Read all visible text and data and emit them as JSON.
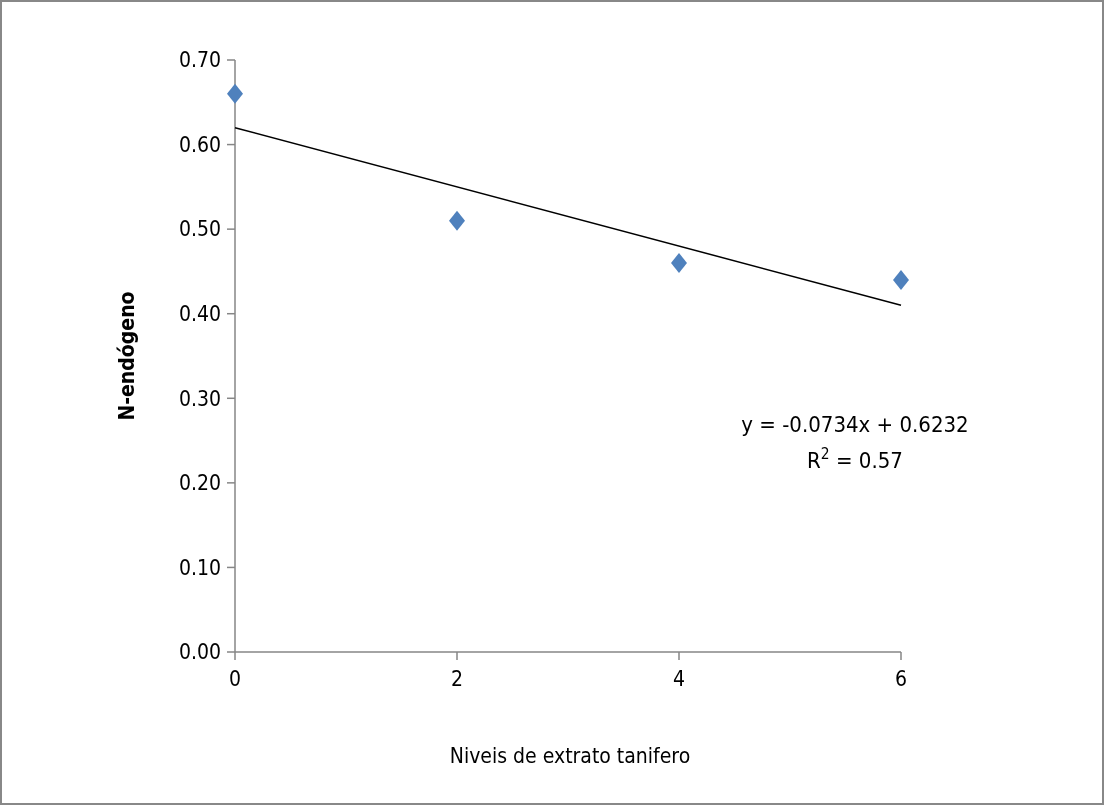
{
  "chart_data": {
    "type": "scatter",
    "xlabel": "Niveis de extrato tanifero",
    "ylabel": "N-endógeno",
    "x": [
      0,
      2,
      4,
      6
    ],
    "series": [
      {
        "color": "#4f81bd",
        "values": [
          0.66,
          0.51,
          0.46,
          0.44
        ],
        "marker": "diamond"
      },
      {
        "type": "line",
        "color": "#000000",
        "x": [
          0,
          6
        ],
        "values": [
          0.62,
          0.41
        ],
        "marker": "none"
      }
    ],
    "xlim": [
      0,
      6
    ],
    "xticks": [
      0,
      2,
      4,
      6
    ],
    "ylim": [
      0,
      0.7
    ],
    "yticks": [
      {
        "value": 0,
        "label": "0.00"
      },
      {
        "value": 0.1,
        "label": "0.10"
      },
      {
        "value": 0.2,
        "label": "0.20"
      },
      {
        "value": 0.3,
        "label": "0.30"
      },
      {
        "value": 0.4,
        "label": "0.40"
      },
      {
        "value": 0.5,
        "label": "0.50"
      },
      {
        "value": 0.6,
        "label": "0.60"
      },
      {
        "value": 0.7,
        "label": "0.70"
      }
    ],
    "grid": false,
    "annotations": [
      "y = -0.0734x + 0.6232",
      "R$^{2}$ = 0.57"
    ]
  }
}
